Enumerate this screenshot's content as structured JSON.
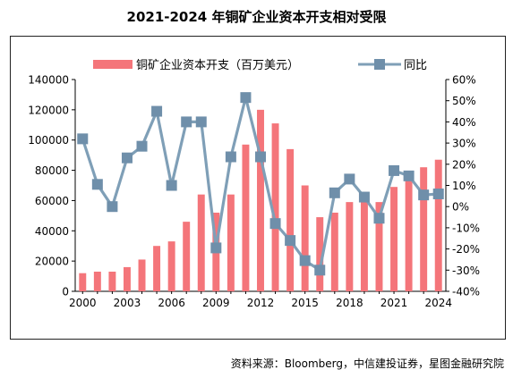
{
  "title": "2021-2024 年铜矿企业资本开支相对受限",
  "source": "资料来源：Bloomberg，中信建投证券，星图金融研究院",
  "chart_data": {
    "type": "bar",
    "title": "2021-2024 年铜矿企业资本开支相对受限",
    "xlabel": "",
    "ylabel": "",
    "y2label": "",
    "legend_position": "top",
    "grid": false,
    "categories": [
      "2000",
      "2001",
      "2002",
      "2003",
      "2004",
      "2005",
      "2006",
      "2007",
      "2008",
      "2009",
      "2010",
      "2011",
      "2012",
      "2013",
      "2014",
      "2015",
      "2016",
      "2017",
      "2018",
      "2019",
      "2020",
      "2021",
      "2022",
      "2023",
      "2024"
    ],
    "x_tick_labels": [
      "2000",
      "2003",
      "2006",
      "2009",
      "2012",
      "2015",
      "2018",
      "2021",
      "2024"
    ],
    "ylim": [
      0,
      140000
    ],
    "y_ticks": [
      0,
      20000,
      40000,
      60000,
      80000,
      100000,
      120000,
      140000
    ],
    "y2lim": [
      -40,
      60
    ],
    "y2_ticks": [
      "-40%",
      "-30%",
      "-20%",
      "-10%",
      "0%",
      "10%",
      "20%",
      "30%",
      "40%",
      "50%",
      "60%"
    ],
    "y2_tick_values": [
      -40,
      -30,
      -20,
      -10,
      0,
      10,
      20,
      30,
      40,
      50,
      60
    ],
    "series": [
      {
        "name": "铜矿企业资本开支（百万美元）",
        "type": "bar",
        "axis": "left",
        "color": "#f4757a",
        "values": [
          12000,
          13000,
          13000,
          16000,
          21000,
          30000,
          33000,
          46000,
          64000,
          52000,
          64000,
          97000,
          120000,
          111000,
          94000,
          70000,
          49000,
          52000,
          59000,
          62000,
          59000,
          69000,
          79000,
          82000,
          87000
        ]
      },
      {
        "name": "同比",
        "type": "line",
        "axis": "right",
        "color": "#7f9fb7",
        "marker_color": "#6f8faa",
        "values": [
          32,
          10.5,
          0,
          23,
          28.5,
          45,
          10,
          40,
          40,
          -19.5,
          23.5,
          51.5,
          23.5,
          -8,
          -16,
          -25.5,
          -30,
          6.5,
          13,
          4.5,
          -5.5,
          17,
          14.5,
          5.5,
          6
        ]
      }
    ]
  }
}
